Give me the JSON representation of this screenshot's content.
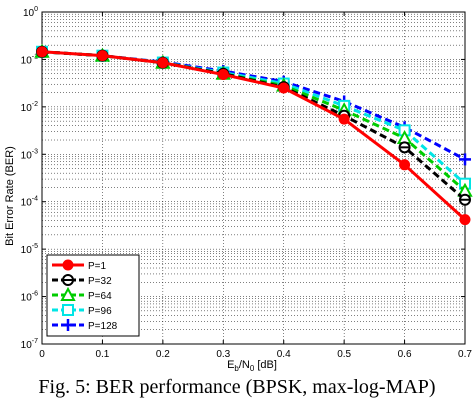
{
  "chart_data": {
    "type": "line",
    "yscale": "log",
    "xlabel_main": "E",
    "xlabel_sub1": "b",
    "xlabel_mid": "/N",
    "xlabel_sub2": "0",
    "xlabel_tail": " [dB]",
    "ylabel": "Bit Error Rate (BER)",
    "xlim": [
      0,
      0.7
    ],
    "ylim": [
      1e-07,
      1
    ],
    "xticks": [
      "0",
      "0.1",
      "0.2",
      "0.3",
      "0.4",
      "0.5",
      "0.6",
      "0.7"
    ],
    "yticks": [
      {
        "base": "10",
        "exp": "0"
      },
      {
        "base": "10",
        "exp": "-1"
      },
      {
        "base": "10",
        "exp": "-2"
      },
      {
        "base": "10",
        "exp": "-3"
      },
      {
        "base": "10",
        "exp": "-4"
      },
      {
        "base": "10",
        "exp": "-5"
      },
      {
        "base": "10",
        "exp": "-6"
      },
      {
        "base": "10",
        "exp": "-7"
      }
    ],
    "grid": true,
    "legend_position": "bottom-left",
    "x": [
      0,
      0.1,
      0.2,
      0.3,
      0.4,
      0.5,
      0.6,
      0.7
    ],
    "series": [
      {
        "name": "P=1",
        "color": "#ff0000",
        "marker": "filled-circle",
        "dash": "solid",
        "values": [
          0.145,
          0.12,
          0.085,
          0.048,
          0.025,
          0.0055,
          0.0006,
          4.2e-05
        ]
      },
      {
        "name": "P=32",
        "color": "#000000",
        "marker": "circle-bar",
        "dash": "dashed",
        "values": [
          0.145,
          0.12,
          0.085,
          0.05,
          0.026,
          0.0065,
          0.0014,
          0.00011
        ]
      },
      {
        "name": "P=64",
        "color": "#00cc00",
        "marker": "triangle",
        "dash": "dashed",
        "values": [
          0.145,
          0.12,
          0.085,
          0.05,
          0.028,
          0.0085,
          0.0022,
          0.00017
        ]
      },
      {
        "name": "P=96",
        "color": "#00e5e5",
        "marker": "square",
        "dash": "dashed",
        "values": [
          0.145,
          0.12,
          0.086,
          0.053,
          0.031,
          0.0105,
          0.0032,
          0.00024
        ]
      },
      {
        "name": "P=128",
        "color": "#0000ff",
        "marker": "plus",
        "dash": "dashed",
        "values": [
          0.145,
          0.12,
          0.088,
          0.057,
          0.034,
          0.013,
          0.0037,
          0.00078
        ]
      }
    ]
  },
  "caption": "Fig. 5: BER performance (BPSK, max-log-MAP)"
}
